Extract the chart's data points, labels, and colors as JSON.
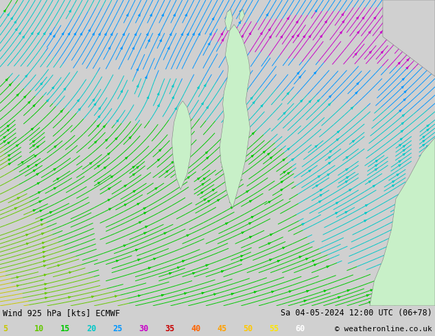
{
  "title_left": "Wind 925 hPa [kts] ECMWF",
  "title_right": "Sa 04-05-2024 12:00 UTC (06+78)",
  "copyright": "© weatheronline.co.uk",
  "legend_values": [
    5,
    10,
    15,
    20,
    25,
    30,
    35,
    40,
    45,
    50,
    55,
    60
  ],
  "legend_colors": [
    "#c8c800",
    "#64c800",
    "#00c800",
    "#00c8c8",
    "#0096ff",
    "#c800c8",
    "#c80000",
    "#ff6400",
    "#ffa000",
    "#ffc800",
    "#ffe600",
    "#ffffff"
  ],
  "bg_color": "#e8e8e8",
  "land_color": "#c8f0c8",
  "border_color": "#808080",
  "fig_width": 6.34,
  "fig_height": 4.9,
  "dpi": 100,
  "bottom_bar_color": "#d0d0d0",
  "text_color": "#000000"
}
